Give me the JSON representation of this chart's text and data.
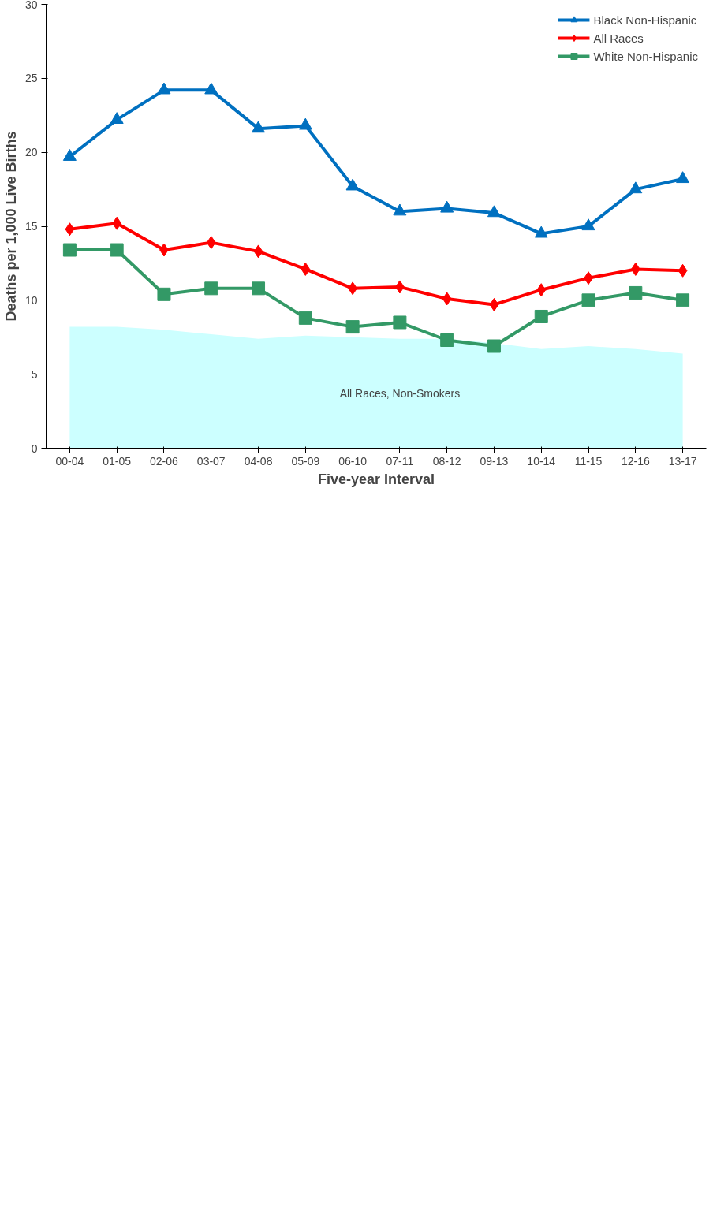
{
  "chart_data": {
    "type": "line",
    "xlabel": "Five-year Interval",
    "ylabel": "Deaths per 1,000 Live Births",
    "categories": [
      "00-04",
      "01-05",
      "02-06",
      "03-07",
      "04-08",
      "05-09",
      "06-10",
      "07-11",
      "08-12",
      "09-13",
      "10-14",
      "11-15",
      "12-16",
      "13-17"
    ],
    "series": [
      {
        "name": "All Races, Non-Smokers",
        "type": "area",
        "color": "#ccffff",
        "values": [
          8.2,
          8.2,
          8.0,
          7.7,
          7.4,
          7.6,
          7.5,
          7.4,
          7.4,
          7.1,
          6.7,
          6.9,
          6.7,
          6.4
        ]
      },
      {
        "name": "Black Non-Hispanic",
        "color": "#0070c0",
        "marker": "triangle",
        "values": [
          19.7,
          22.2,
          24.2,
          24.2,
          21.6,
          21.8,
          17.7,
          16.0,
          16.2,
          15.9,
          14.5,
          15.0,
          17.5,
          18.2
        ]
      },
      {
        "name": "All Races",
        "color": "#ff0000",
        "marker": "diamond",
        "values": [
          14.8,
          15.2,
          13.4,
          13.9,
          13.3,
          12.1,
          10.8,
          10.9,
          10.1,
          9.7,
          10.7,
          11.5,
          12.1,
          12.0
        ]
      },
      {
        "name": "White Non-Hispanic",
        "color": "#339966",
        "marker": "square",
        "values": [
          13.4,
          13.4,
          10.4,
          10.8,
          10.8,
          8.8,
          8.2,
          8.5,
          7.3,
          6.9,
          8.9,
          10.0,
          10.5,
          10.0
        ]
      }
    ],
    "ylim": [
      0,
      30
    ],
    "yticks": [
      0,
      5,
      10,
      15,
      20,
      25,
      30
    ],
    "grid": false,
    "legend": "top right",
    "line_style": "solid"
  }
}
